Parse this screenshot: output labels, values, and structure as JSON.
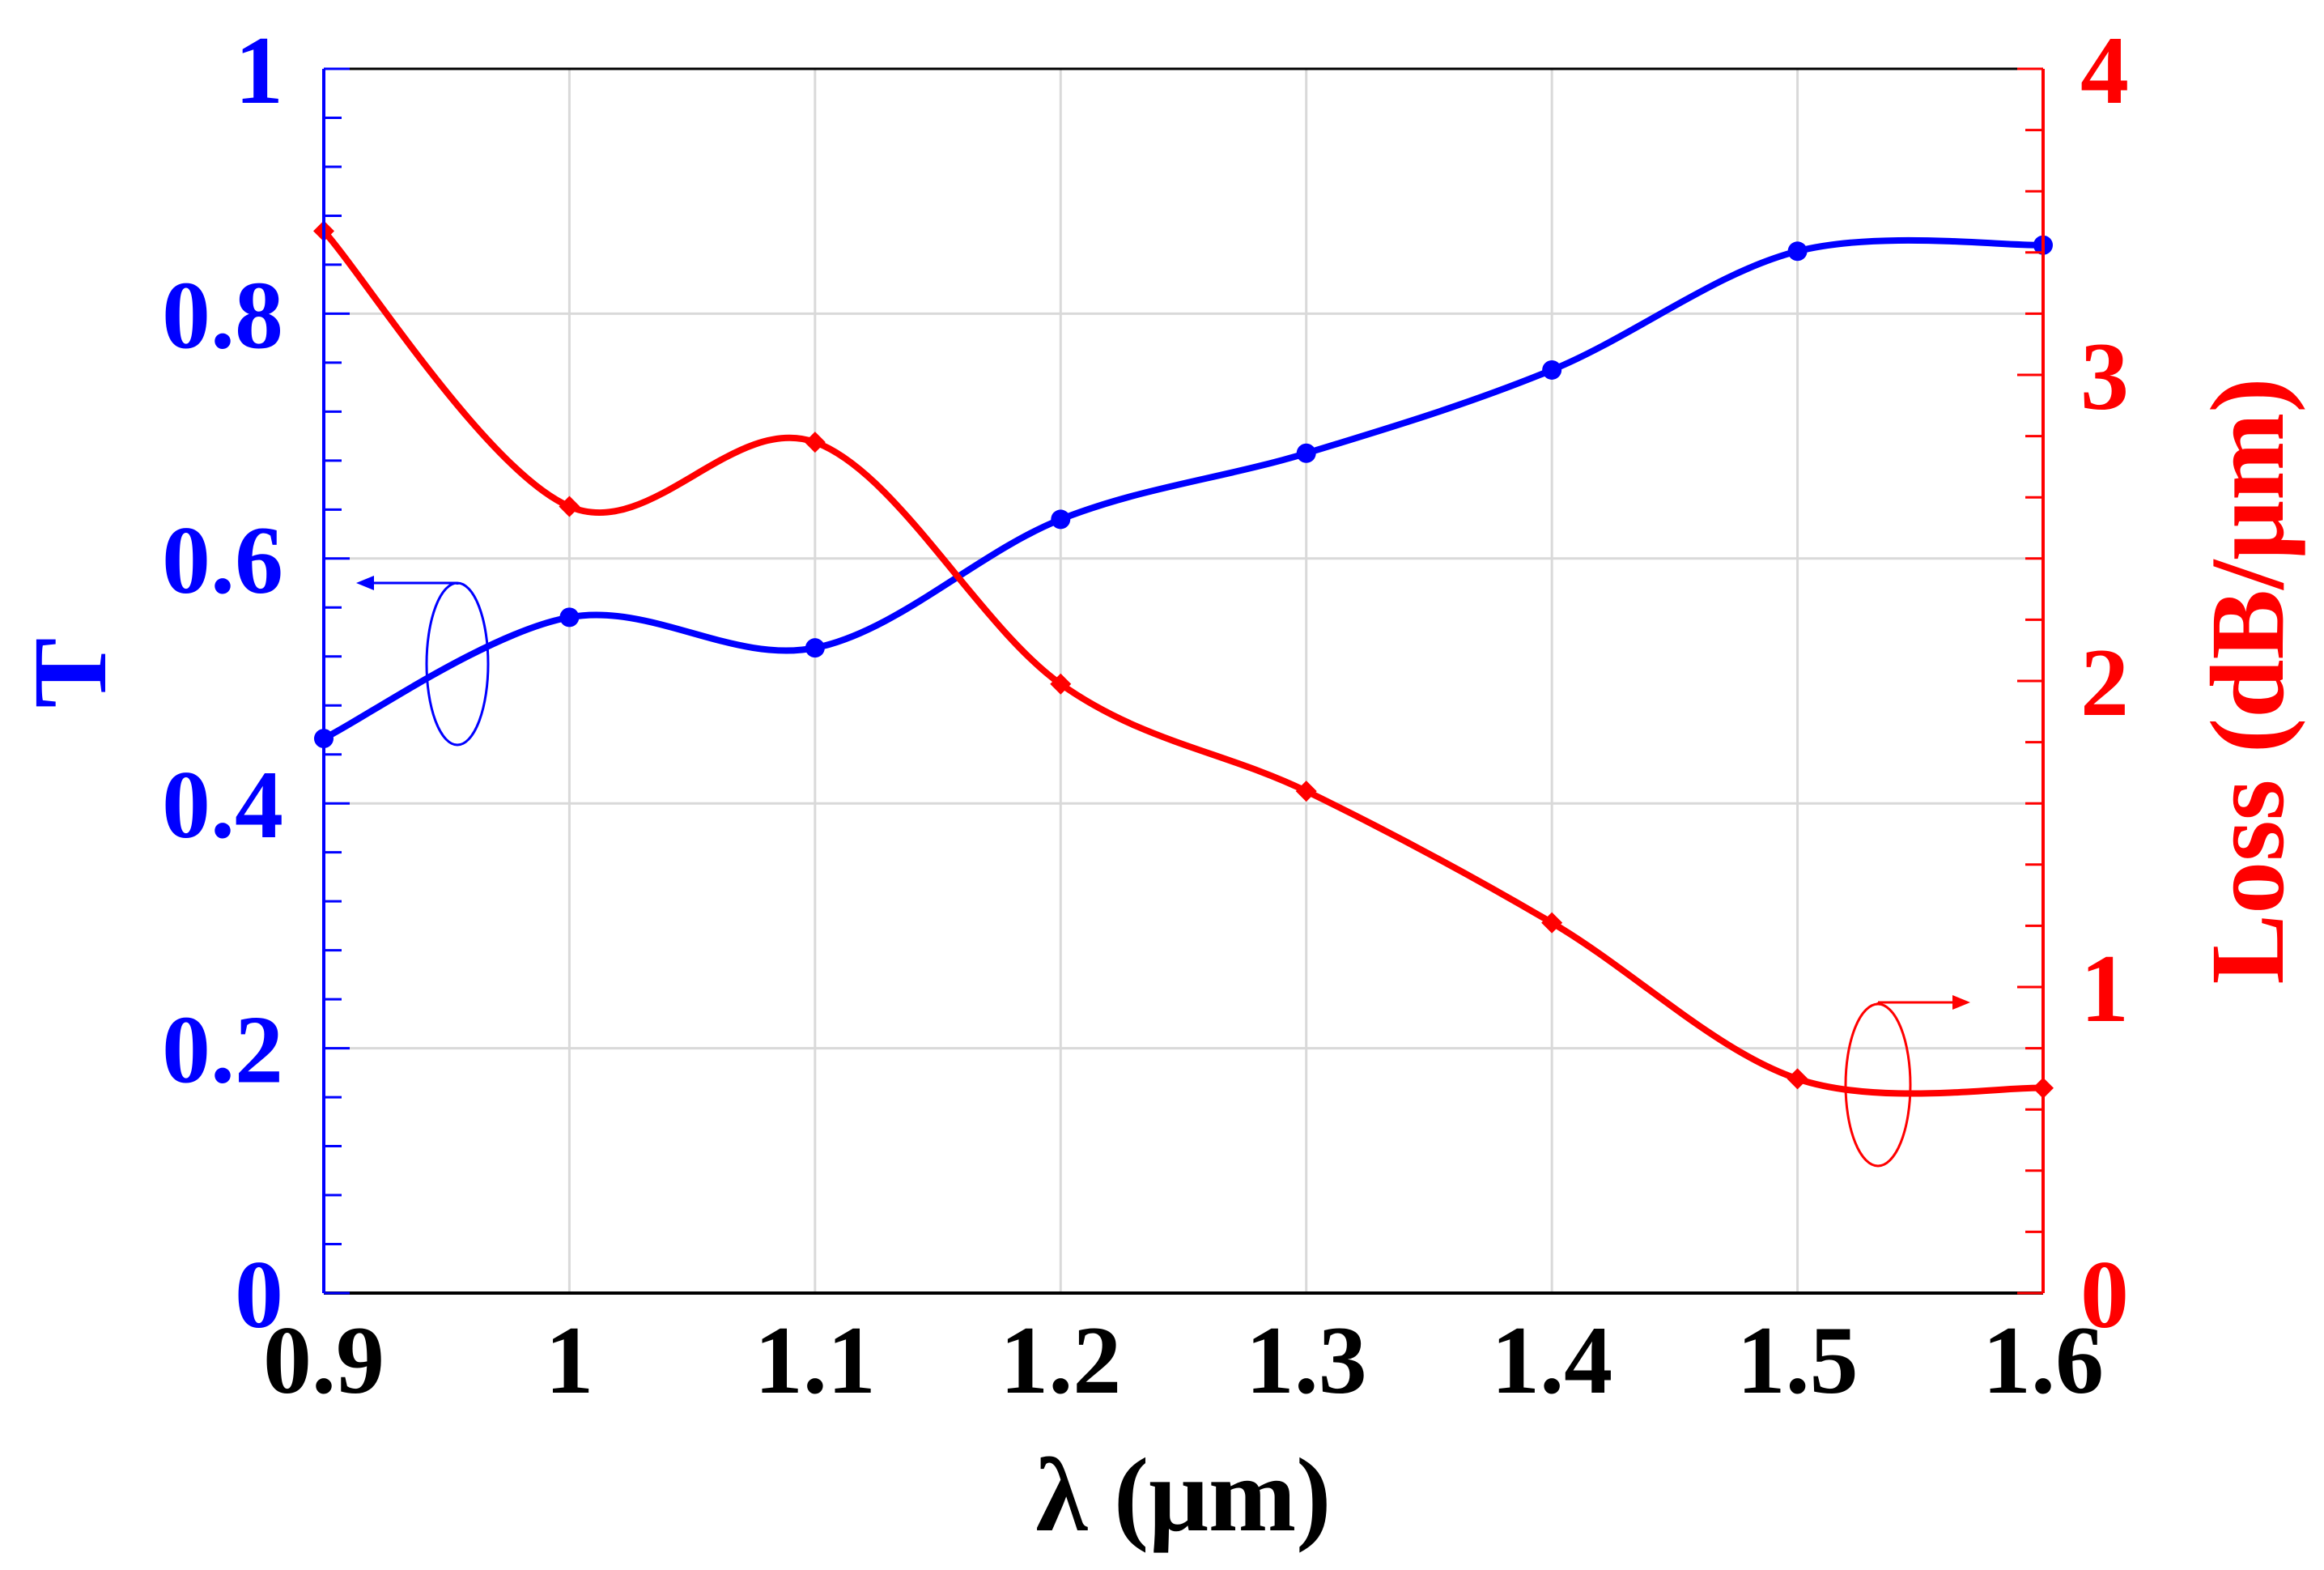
{
  "chart_data": {
    "type": "line",
    "title": "",
    "xlabel": "λ (μm)",
    "ylabel_left": "T",
    "ylabel_right": "Loss (dB/μm)",
    "xlim": [
      0.9,
      1.6
    ],
    "ylim_left": [
      0,
      1
    ],
    "ylim_right": [
      0,
      4
    ],
    "x_ticks": [
      "0.9",
      "1",
      "1.1",
      "1.2",
      "1.3",
      "1.4",
      "1.5",
      "1.6"
    ],
    "y_left_ticks": [
      "0",
      "0.2",
      "0.4",
      "0.6",
      "0.8",
      "1"
    ],
    "y_right_ticks": [
      "0",
      "1",
      "2",
      "3",
      "4"
    ],
    "grid": true,
    "colors": {
      "left_axis": "#0000ff",
      "right_axis": "#ff0000",
      "x_axis": "#000000",
      "grid": "#d9d9d9"
    },
    "x": [
      0.9,
      1.0,
      1.1,
      1.2,
      1.3,
      1.4,
      1.5,
      1.6
    ],
    "series": [
      {
        "axis": "left",
        "color": "#0000ff",
        "marker": "circle",
        "values": [
          0.453,
          0.552,
          0.527,
          0.632,
          0.686,
          0.754,
          0.851,
          0.856
        ]
      },
      {
        "axis": "right",
        "color": "#ff0000",
        "marker": "diamond",
        "values": [
          3.47,
          2.57,
          2.78,
          1.99,
          1.64,
          1.21,
          0.7,
          0.67
        ]
      }
    ]
  }
}
